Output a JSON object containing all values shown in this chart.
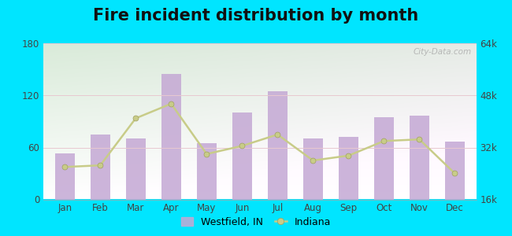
{
  "title": "Fire incident distribution by month",
  "months": [
    "Jan",
    "Feb",
    "Mar",
    "Apr",
    "May",
    "Jun",
    "Jul",
    "Aug",
    "Sep",
    "Oct",
    "Nov",
    "Dec"
  ],
  "westfield_values": [
    53,
    75,
    70,
    145,
    65,
    100,
    125,
    70,
    72,
    95,
    97,
    67
  ],
  "indiana_values_right": [
    26000,
    26500,
    41000,
    45500,
    30000,
    32500,
    36000,
    28000,
    29500,
    34000,
    34500,
    24000
  ],
  "bar_color": "#c4a8d4",
  "line_color": "#c8cc88",
  "outer_bg": "#00e5ff",
  "plot_bg": "#eef5e8",
  "ylim_left": [
    0,
    180
  ],
  "ylim_right": [
    16000,
    64000
  ],
  "yticks_left": [
    0,
    60,
    120,
    180
  ],
  "yticks_right": [
    16000,
    32000,
    48000,
    64000
  ],
  "ytick_labels_right": [
    "16k",
    "32k",
    "48k",
    "64k"
  ],
  "title_fontsize": 15,
  "tick_color": "#444444",
  "watermark": "City-Data.com"
}
